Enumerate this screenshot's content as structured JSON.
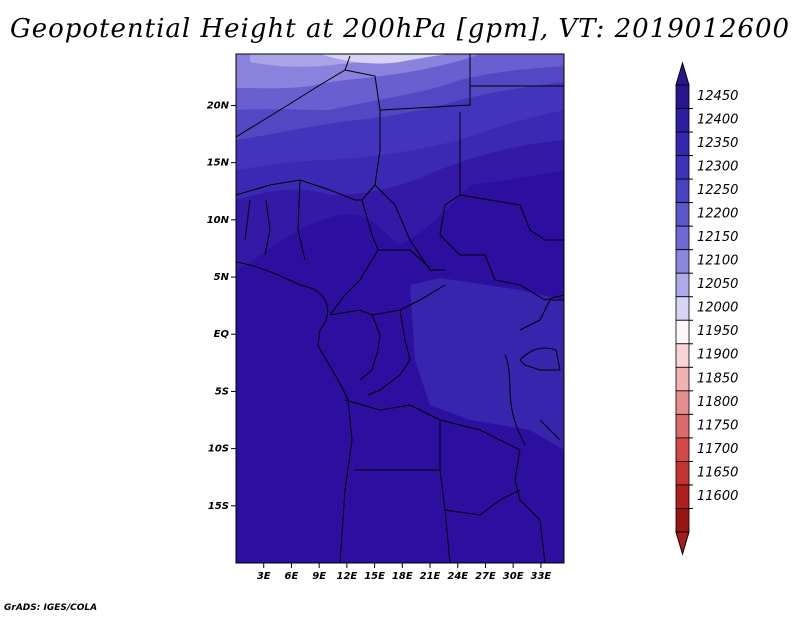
{
  "title": "Geopotential Height at 200hPa [gpm], VT: 2019012600",
  "credit": "GrADS: IGES/COLA",
  "map": {
    "lat_range": [
      -20,
      24.5
    ],
    "lon_range": [
      0,
      35.5
    ],
    "lat_ticks": [
      "20N",
      "15N",
      "10N",
      "5N",
      "EQ",
      "5S",
      "10S",
      "15S"
    ],
    "lat_tick_values": [
      20,
      15,
      10,
      5,
      0,
      -5,
      -10,
      -15
    ],
    "lon_ticks": [
      "3E",
      "6E",
      "9E",
      "12E",
      "15E",
      "18E",
      "21E",
      "24E",
      "27E",
      "30E",
      "33E"
    ],
    "lon_tick_values": [
      3,
      6,
      9,
      12,
      15,
      18,
      21,
      24,
      27,
      30,
      33
    ]
  },
  "colorbar": {
    "labels": [
      "12450",
      "12400",
      "12350",
      "12300",
      "12250",
      "12200",
      "12150",
      "12100",
      "12050",
      "12000",
      "11950",
      "11900",
      "11850",
      "11800",
      "11750",
      "11700",
      "11650",
      "11600"
    ],
    "colors": [
      "#2a1590",
      "#2f1ea3",
      "#3526b0",
      "#3d33ba",
      "#4943c3",
      "#5a56cc",
      "#7068d6",
      "#8d86e0",
      "#b0aaea",
      "#d7d4f4",
      "#fbf6f8",
      "#f8d4d4",
      "#f2b2b2",
      "#e68e8e",
      "#dd6a6a",
      "#d44848",
      "#c43232",
      "#b01e1e",
      "#9b1414"
    ],
    "top_arrow_color": "#2a1590",
    "bottom_arrow_color": "#a81c1c"
  },
  "colors": {
    "deep": "#2e10a0",
    "mid": "#3b2fb6",
    "light": "#c9c6f3",
    "border": "#000000"
  }
}
